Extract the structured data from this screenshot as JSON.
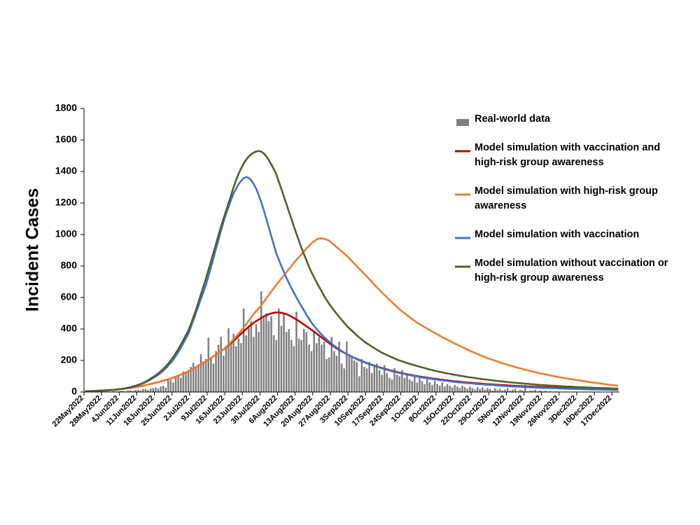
{
  "chart_data": {
    "type": "bar",
    "ylabel": "Incident Cases",
    "ylim": [
      0,
      1800
    ],
    "yticks": [
      0,
      200,
      400,
      600,
      800,
      1000,
      1200,
      1400,
      1600,
      1800
    ],
    "categories": [
      "22May2022",
      null,
      null,
      null,
      null,
      null,
      null,
      "28May2022",
      null,
      null,
      null,
      null,
      null,
      null,
      "4Jun2022",
      null,
      null,
      null,
      null,
      null,
      null,
      "11Jun2022",
      null,
      null,
      null,
      null,
      null,
      null,
      "18Jun2022",
      null,
      null,
      null,
      null,
      null,
      null,
      "25Jun2022",
      null,
      null,
      null,
      null,
      null,
      null,
      "2Jul2022",
      null,
      null,
      null,
      null,
      null,
      null,
      "9Jul2022",
      null,
      null,
      null,
      null,
      null,
      null,
      "16Jul2022",
      null,
      null,
      null,
      null,
      null,
      null,
      "23Jul2022",
      null,
      null,
      null,
      null,
      null,
      null,
      "30Jul2022",
      null,
      null,
      null,
      null,
      null,
      null,
      "6Aug2022",
      null,
      null,
      null,
      null,
      null,
      null,
      "13Aug2022",
      null,
      null,
      null,
      null,
      null,
      null,
      "20Aug2022",
      null,
      null,
      null,
      null,
      null,
      null,
      "27Aug2022",
      null,
      null,
      null,
      null,
      null,
      null,
      "3Sep2022",
      null,
      null,
      null,
      null,
      null,
      null,
      "10Sep2022",
      null,
      null,
      null,
      null,
      null,
      null,
      "17Sep2022",
      null,
      null,
      null,
      null,
      null,
      null,
      "24Sep2022",
      null,
      null,
      null,
      null,
      null,
      null,
      "1Oct2022",
      null,
      null,
      null,
      null,
      null,
      null,
      "8Oct2022",
      null,
      null,
      null,
      null,
      null,
      null,
      "15Oct2022",
      null,
      null,
      null,
      null,
      null,
      null,
      "22Oct2022",
      null,
      null,
      null,
      null,
      null,
      null,
      "29Oct2022",
      null,
      null,
      null,
      null,
      null,
      null,
      "5Nov2022",
      null,
      null,
      null,
      null,
      null,
      null,
      "12Nov2022",
      null,
      null,
      null,
      null,
      null,
      null,
      "19Nov2022",
      null,
      null,
      null,
      null,
      null,
      null,
      "26Nov2022",
      null,
      null,
      null,
      null,
      null,
      null,
      "3Dec2022",
      null,
      null,
      null,
      null,
      null,
      null,
      "10Dec2022",
      null,
      null,
      null,
      null,
      null,
      null,
      "17Dec2022",
      null,
      null
    ],
    "series": [
      {
        "name": "Real-world data",
        "type": "bar",
        "color": "#7f7f7f",
        "values": [
          1,
          0,
          2,
          1,
          0,
          3,
          2,
          1,
          4,
          3,
          2,
          5,
          6,
          4,
          7,
          8,
          5,
          9,
          11,
          8,
          12,
          15,
          10,
          18,
          20,
          14,
          22,
          25,
          30,
          22,
          35,
          40,
          28,
          80,
          75,
          60,
          95,
          110,
          90,
          130,
          120,
          140,
          160,
          185,
          150,
          175,
          240,
          195,
          210,
          345,
          220,
          180,
          260,
          300,
          350,
          230,
          280,
          405,
          320,
          370,
          290,
          340,
          310,
          530,
          360,
          420,
          450,
          350,
          430,
          380,
          640,
          470,
          500,
          450,
          480,
          360,
          330,
          530,
          420,
          500,
          380,
          400,
          330,
          290,
          510,
          340,
          330,
          400,
          380,
          300,
          260,
          380,
          310,
          350,
          300,
          320,
          210,
          220,
          350,
          260,
          230,
          320,
          180,
          150,
          320,
          240,
          230,
          200,
          190,
          100,
          210,
          160,
          150,
          190,
          120,
          160,
          180,
          140,
          110,
          170,
          120,
          90,
          80,
          150,
          110,
          100,
          140,
          90,
          110,
          80,
          70,
          100,
          60,
          90,
          70,
          50,
          80,
          60,
          45,
          70,
          50,
          40,
          60,
          35,
          50,
          40,
          30,
          45,
          35,
          25,
          40,
          30,
          20,
          35,
          25,
          15,
          30,
          20,
          30,
          15,
          25,
          20,
          10,
          25,
          15,
          20,
          10,
          15,
          25,
          10,
          15,
          20,
          5,
          15,
          10,
          45,
          5,
          10,
          8,
          15,
          5,
          10,
          5,
          8,
          3,
          5,
          2,
          4,
          3,
          2,
          1,
          3,
          0,
          2,
          1,
          0,
          2,
          1,
          0,
          1,
          0,
          0,
          1,
          0,
          0,
          1,
          0,
          0,
          0,
          0,
          0,
          0,
          0
        ]
      },
      {
        "name": "Model simulation with vaccination and high-risk group awareness",
        "type": "line",
        "color": "#c00000",
        "values": [
          5,
          5,
          6,
          6,
          7,
          8,
          9,
          10,
          11,
          12,
          13,
          14,
          15,
          17,
          18,
          20,
          22,
          24,
          26,
          28,
          30,
          33,
          36,
          40,
          43,
          47,
          51,
          55,
          59,
          63,
          67,
          72,
          76,
          80,
          85,
          91,
          97,
          103,
          110,
          117,
          124,
          130,
          139,
          148,
          157,
          166,
          176,
          186,
          195,
          205,
          215,
          226,
          237,
          248,
          259,
          270,
          284,
          298,
          312,
          326,
          340,
          355,
          370,
          385,
          400,
          414,
          427,
          439,
          450,
          460,
          470,
          479,
          487,
          494,
          499,
          503,
          505,
          505,
          503,
          499,
          494,
          487,
          479,
          470,
          460,
          450,
          439,
          428,
          417,
          406,
          395,
          383,
          371,
          359,
          347,
          334,
          322,
          310,
          299,
          288,
          277,
          267,
          258,
          249,
          240,
          232,
          224,
          217,
          210,
          203,
          196,
          190,
          184,
          178,
          173,
          167,
          162,
          157,
          152,
          148,
          144,
          139,
          135,
          131,
          127,
          123,
          120,
          116,
          113,
          110,
          107,
          104,
          101,
          98,
          96,
          93,
          91,
          88,
          86,
          84,
          82,
          80,
          78,
          76,
          74,
          72,
          70,
          68,
          67,
          65,
          63,
          62,
          60,
          59,
          58,
          56,
          55,
          54,
          53,
          51,
          50,
          49,
          48,
          47,
          46,
          45,
          44,
          43,
          42,
          41,
          40,
          39,
          38,
          38,
          37,
          36,
          35,
          35,
          34,
          33,
          33,
          32,
          31,
          31,
          30,
          30,
          29,
          29,
          28,
          27,
          27,
          26,
          26,
          25,
          25,
          24,
          24,
          23,
          23,
          22,
          22,
          21,
          21,
          21,
          20,
          20,
          20,
          19,
          19,
          19,
          18,
          18,
          18
        ]
      },
      {
        "name": "Model simulation with high-risk group awareness",
        "type": "line",
        "color": "#ed7d31",
        "values": [
          5,
          5,
          6,
          6,
          7,
          8,
          9,
          10,
          11,
          12,
          13,
          14,
          15,
          17,
          18,
          20,
          22,
          24,
          26,
          28,
          30,
          33,
          36,
          40,
          43,
          47,
          51,
          55,
          59,
          63,
          67,
          72,
          76,
          80,
          85,
          91,
          97,
          103,
          110,
          117,
          124,
          130,
          139,
          148,
          157,
          166,
          176,
          186,
          195,
          205,
          215,
          226,
          237,
          248,
          259,
          270,
          286,
          302,
          319,
          335,
          352,
          370,
          390,
          410,
          430,
          452,
          474,
          496,
          513,
          530,
          551,
          572,
          594,
          616,
          638,
          659,
          680,
          700,
          720,
          740,
          760,
          780,
          800,
          820,
          839,
          857,
          875,
          893,
          911,
          928,
          945,
          958,
          968,
          974,
          975,
          973,
          968,
          960,
          948,
          934,
          920,
          906,
          893,
          879,
          865,
          849,
          832,
          815,
          799,
          782,
          766,
          750,
          733,
          716,
          699,
          682,
          665,
          649,
          632,
          617,
          601,
          586,
          571,
          556,
          540,
          525,
          513,
          500,
          488,
          476,
          464,
          452,
          440,
          431,
          421,
          412,
          402,
          393,
          384,
          375,
          366,
          358,
          349,
          341,
          332,
          324,
          315,
          307,
          300,
          292,
          285,
          277,
          270,
          262,
          255,
          248,
          241,
          235,
          228,
          222,
          215,
          210,
          204,
          199,
          194,
          188,
          183,
          178,
          173,
          168,
          164,
          159,
          154,
          150,
          145,
          141,
          137,
          133,
          129,
          126,
          122,
          118,
          115,
          112,
          109,
          105,
          102,
          99,
          96,
          93,
          90,
          88,
          85,
          82,
          80,
          77,
          75,
          72,
          70,
          67,
          65,
          62,
          60,
          58,
          56,
          54,
          52,
          49,
          47,
          45,
          43,
          42,
          40
        ]
      },
      {
        "name": "Model simulation with vaccination",
        "type": "line",
        "color": "#4472c4",
        "values": [
          5,
          5,
          6,
          6,
          7,
          7,
          8,
          9,
          10,
          11,
          12,
          13,
          15,
          16,
          18,
          21,
          23,
          26,
          29,
          33,
          38,
          43,
          49,
          55,
          62,
          70,
          79,
          88,
          98,
          109,
          121,
          135,
          150,
          167,
          185,
          205,
          228,
          253,
          280,
          310,
          340,
          370,
          410,
          455,
          500,
          545,
          590,
          635,
          680,
          735,
          790,
          850,
          910,
          965,
          1025,
          1080,
          1130,
          1175,
          1220,
          1260,
          1290,
          1320,
          1340,
          1358,
          1365,
          1360,
          1345,
          1320,
          1290,
          1250,
          1205,
          1155,
          1100,
          1045,
          990,
          935,
          880,
          840,
          800,
          762,
          726,
          692,
          660,
          630,
          600,
          572,
          545,
          518,
          490,
          465,
          440,
          420,
          400,
          382,
          365,
          349,
          334,
          320,
          307,
          294,
          282,
          271,
          260,
          250,
          240,
          232,
          224,
          216,
          208,
          201,
          194,
          188,
          182,
          176,
          171,
          165,
          160,
          155,
          150,
          145,
          141,
          136,
          132,
          128,
          124,
          120,
          117,
          114,
          110,
          107,
          104,
          101,
          98,
          95,
          92,
          90,
          87,
          85,
          82,
          80,
          78,
          76,
          74,
          72,
          70,
          68,
          66,
          64,
          62,
          61,
          59,
          58,
          56,
          55,
          54,
          52,
          51,
          50,
          49,
          47,
          46,
          45,
          44,
          43,
          42,
          40,
          39,
          38,
          37,
          36,
          35,
          34,
          34,
          33,
          32,
          31,
          30,
          30,
          29,
          28,
          28,
          27,
          26,
          26,
          25,
          25,
          24,
          24,
          23,
          22,
          22,
          21,
          21,
          20,
          20,
          19,
          19,
          18,
          18,
          17,
          17,
          16,
          16,
          16,
          15,
          15,
          15,
          14,
          14,
          14,
          13,
          13,
          13
        ]
      },
      {
        "name": "Model simulation without vaccination or high-risk group awareness",
        "type": "line",
        "color": "#4f6228",
        "values": [
          5,
          5,
          6,
          6,
          7,
          7,
          8,
          9,
          10,
          11,
          12,
          13,
          15,
          17,
          19,
          21,
          24,
          27,
          31,
          35,
          40,
          45,
          51,
          58,
          66,
          75,
          85,
          95,
          106,
          118,
          131,
          146,
          162,
          180,
          200,
          222,
          246,
          272,
          300,
          330,
          360,
          390,
          430,
          475,
          520,
          570,
          620,
          670,
          720,
          775,
          830,
          885,
          940,
          995,
          1050,
          1100,
          1150,
          1200,
          1250,
          1300,
          1345,
          1385,
          1420,
          1450,
          1475,
          1495,
          1510,
          1520,
          1527,
          1530,
          1527,
          1515,
          1497,
          1472,
          1445,
          1415,
          1380,
          1335,
          1290,
          1240,
          1195,
          1145,
          1100,
          1050,
          1005,
          960,
          915,
          875,
          835,
          795,
          760,
          728,
          697,
          668,
          640,
          610,
          585,
          560,
          538,
          517,
          497,
          477,
          458,
          439,
          420,
          405,
          390,
          375,
          360,
          346,
          333,
          320,
          309,
          299,
          288,
          278,
          268,
          259,
          250,
          242,
          234,
          227,
          220,
          213,
          206,
          200,
          195,
          190,
          184,
          179,
          174,
          170,
          165,
          161,
          156,
          152,
          147,
          143,
          139,
          135,
          132,
          128,
          125,
          121,
          118,
          115,
          112,
          109,
          106,
          103,
          101,
          98,
          95,
          93,
          91,
          89,
          86,
          84,
          82,
          80,
          78,
          76,
          74,
          72,
          70,
          68,
          67,
          65,
          63,
          62,
          60,
          59,
          57,
          56,
          54,
          53,
          52,
          50,
          49,
          48,
          46,
          45,
          44,
          43,
          42,
          41,
          40,
          39,
          38,
          37,
          36,
          35,
          34,
          34,
          33,
          32,
          31,
          30,
          30,
          29,
          28,
          28,
          27,
          26,
          26,
          25,
          25,
          24,
          24,
          23,
          22,
          22,
          21
        ]
      }
    ]
  }
}
